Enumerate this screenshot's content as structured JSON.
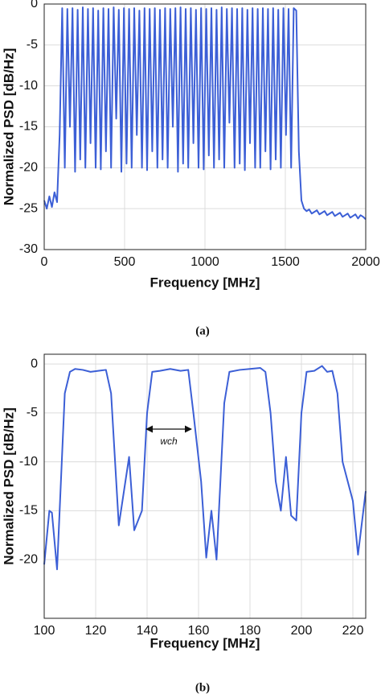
{
  "chart_data": [
    {
      "type": "line",
      "xlabel": "Frequency [MHz]",
      "ylabel": "Normalized PSD [dB/Hz]",
      "caption": "(a)",
      "xlim": [
        0,
        2000
      ],
      "ylim": [
        -30,
        0
      ],
      "xticks": [
        0,
        500,
        1000,
        1500,
        2000
      ],
      "yticks": [
        0,
        -5,
        -10,
        -15,
        -20,
        -25,
        -30
      ],
      "grid": true,
      "x": [
        0,
        16,
        32,
        48,
        64,
        80,
        96,
        112,
        128,
        144,
        160,
        176,
        192,
        208,
        224,
        240,
        256,
        272,
        288,
        304,
        320,
        336,
        352,
        368,
        384,
        400,
        416,
        432,
        448,
        464,
        480,
        496,
        512,
        528,
        544,
        560,
        576,
        592,
        608,
        624,
        640,
        656,
        672,
        688,
        704,
        720,
        736,
        752,
        768,
        784,
        800,
        816,
        832,
        848,
        864,
        880,
        896,
        912,
        928,
        944,
        960,
        976,
        992,
        1008,
        1024,
        1040,
        1056,
        1072,
        1088,
        1104,
        1120,
        1136,
        1152,
        1168,
        1184,
        1200,
        1216,
        1232,
        1248,
        1264,
        1280,
        1296,
        1312,
        1328,
        1344,
        1360,
        1376,
        1392,
        1408,
        1424,
        1440,
        1456,
        1472,
        1488,
        1504,
        1520,
        1536,
        1552,
        1568,
        1584,
        1600,
        1616,
        1632,
        1648,
        1664,
        1680,
        1696,
        1712,
        1728,
        1744,
        1760,
        1776,
        1792,
        1808,
        1824,
        1840,
        1856,
        1872,
        1888,
        1904,
        1920,
        1936,
        1952,
        1968,
        1984,
        2000
      ],
      "series": [
        {
          "name": "PSD",
          "color": "#3c5fd6",
          "values": [
            -24,
            -25,
            -23.5,
            -24.8,
            -23,
            -24.2,
            -16,
            -0.5,
            -20,
            -0.6,
            -15,
            -0.5,
            -20.5,
            -0.7,
            -19,
            -0.4,
            -20,
            -0.6,
            -17,
            -0.5,
            -20,
            -0.8,
            -20.2,
            -0.5,
            -18,
            -0.6,
            -20,
            -0.4,
            -14,
            -0.7,
            -20.5,
            -0.5,
            -19.5,
            -0.6,
            -20,
            -0.5,
            -16,
            -0.8,
            -20,
            -0.5,
            -20.3,
            -0.6,
            -18,
            -0.5,
            -20,
            -0.7,
            -19,
            -0.5,
            -20,
            -0.6,
            -15,
            -0.5,
            -20.5,
            -0.4,
            -19.5,
            -0.6,
            -20,
            -0.5,
            -17,
            -0.7,
            -20,
            -0.5,
            -20.2,
            -0.6,
            -18.5,
            -0.5,
            -20,
            -0.7,
            -19,
            -0.4,
            -20,
            -0.6,
            -14.5,
            -0.5,
            -20,
            -0.6,
            -19.5,
            -0.5,
            -20.3,
            -0.7,
            -17,
            -0.5,
            -20,
            -0.6,
            -20,
            -0.5,
            -18,
            -0.6,
            -20.2,
            -0.5,
            -19,
            -0.7,
            -20,
            -0.5,
            -16,
            -0.6,
            -20,
            -0.5,
            -0.8,
            -18,
            -24,
            -25,
            -25.3,
            -25.1,
            -25.6,
            -25.4,
            -25.2,
            -25.7,
            -25.5,
            -25.3,
            -25.8,
            -25.6,
            -25.4,
            -25.9,
            -25.7,
            -25.5,
            -26,
            -25.8,
            -25.6,
            -26.1,
            -25.9,
            -25.7,
            -26.2,
            -25.8,
            -26,
            -26.3
          ]
        }
      ]
    },
    {
      "type": "line",
      "xlabel": "Frequency [MHz]",
      "ylabel": "Normalized PSD [dB/Hz]",
      "caption": "(b)",
      "annotation": "wch",
      "xlim": [
        100,
        225
      ],
      "ylim": [
        -26,
        1
      ],
      "xticks": [
        100,
        120,
        140,
        160,
        180,
        200,
        220
      ],
      "yticks": [
        0,
        -5,
        -10,
        -15,
        -20
      ],
      "grid": true,
      "x": [
        100,
        102,
        103,
        105,
        108,
        110,
        112,
        115,
        118,
        121,
        124,
        126,
        128,
        129,
        131,
        133,
        135,
        138,
        140,
        142,
        145,
        149,
        153,
        156,
        158,
        161,
        163,
        165,
        167,
        170,
        172,
        176,
        180,
        184,
        186,
        188,
        190,
        192,
        194,
        196,
        198,
        200,
        202,
        205,
        208,
        210,
        212,
        214,
        216,
        220,
        222,
        225
      ],
      "series": [
        {
          "name": "PSD",
          "color": "#3c5fd6",
          "values": [
            -20.5,
            -15,
            -15.2,
            -21,
            -3,
            -0.8,
            -0.5,
            -0.6,
            -0.8,
            -0.7,
            -0.6,
            -3,
            -12,
            -16.5,
            -13,
            -9.5,
            -17,
            -15,
            -5,
            -0.8,
            -0.7,
            -0.5,
            -0.7,
            -0.6,
            -5,
            -12,
            -19.8,
            -15,
            -20,
            -4,
            -0.8,
            -0.6,
            -0.5,
            -0.4,
            -0.8,
            -5,
            -12,
            -15,
            -9.5,
            -15.5,
            -16,
            -5,
            -0.8,
            -0.7,
            -0.2,
            -0.8,
            -0.7,
            -3,
            -10,
            -14,
            -19.5,
            -13
          ]
        }
      ]
    }
  ]
}
